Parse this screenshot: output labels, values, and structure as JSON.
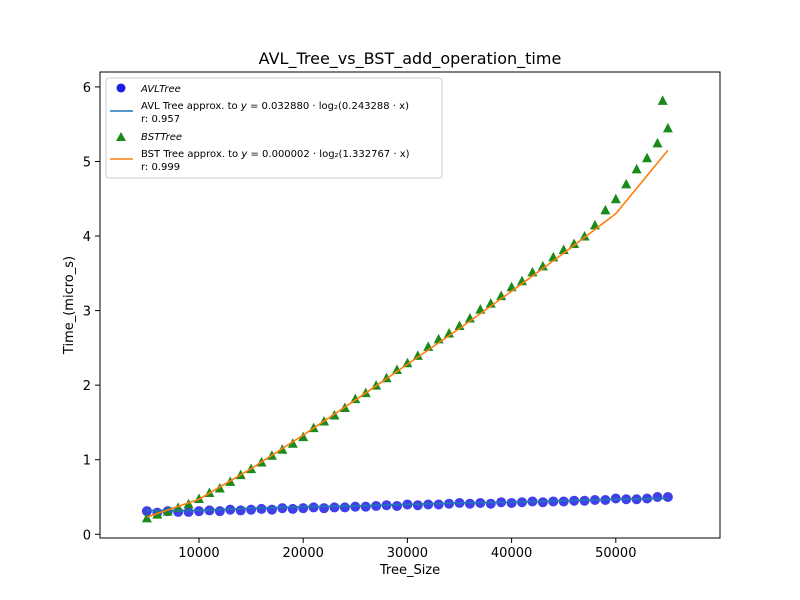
{
  "chart_data": {
    "type": "scatter",
    "title": "AVL_Tree_vs_BST_add_operation_time",
    "xlabel": "Tree_Size",
    "ylabel": "Time_(micro_s)",
    "xlim": [
      500,
      60000
    ],
    "ylim": [
      -0.05,
      6.2
    ],
    "xticks": [
      10000,
      20000,
      30000,
      40000,
      50000
    ],
    "xtick_labels": [
      "10000",
      "20000",
      "30000",
      "40000",
      "50000"
    ],
    "yticks": [
      0,
      1,
      2,
      3,
      4,
      5,
      6
    ],
    "ytick_labels": [
      "0",
      "1",
      "2",
      "3",
      "4",
      "5",
      "6"
    ],
    "grid": false,
    "legend_position": "upper-left",
    "series": [
      {
        "name": "AVLTree",
        "kind": "scatter",
        "marker": "circle",
        "color": "#1f1fe6",
        "x": [
          5000,
          6000,
          7000,
          8000,
          9000,
          10000,
          11000,
          12000,
          13000,
          14000,
          15000,
          16000,
          17000,
          18000,
          19000,
          20000,
          21000,
          22000,
          23000,
          24000,
          25000,
          26000,
          27000,
          28000,
          29000,
          30000,
          31000,
          32000,
          33000,
          34000,
          35000,
          36000,
          37000,
          38000,
          39000,
          40000,
          41000,
          42000,
          43000,
          44000,
          45000,
          46000,
          47000,
          48000,
          49000,
          50000,
          51000,
          52000,
          53000,
          54000,
          55000
        ],
        "y": [
          0.31,
          0.29,
          0.31,
          0.3,
          0.3,
          0.31,
          0.32,
          0.31,
          0.33,
          0.32,
          0.33,
          0.34,
          0.33,
          0.35,
          0.34,
          0.35,
          0.36,
          0.35,
          0.36,
          0.36,
          0.37,
          0.37,
          0.38,
          0.39,
          0.38,
          0.4,
          0.39,
          0.4,
          0.4,
          0.41,
          0.42,
          0.41,
          0.42,
          0.41,
          0.43,
          0.42,
          0.43,
          0.44,
          0.43,
          0.44,
          0.44,
          0.45,
          0.45,
          0.46,
          0.46,
          0.48,
          0.47,
          0.47,
          0.48,
          0.5,
          0.5
        ]
      },
      {
        "name": "AVL Tree approx. to y = 0.032880 · log2(0.243288 · x)\nr: 0.957",
        "kind": "line",
        "color": "#1f77b4",
        "x": [
          5000,
          10000,
          15000,
          20000,
          25000,
          30000,
          35000,
          40000,
          45000,
          50000,
          55000
        ],
        "y": [
          0.32,
          0.32,
          0.35,
          0.37,
          0.38,
          0.4,
          0.42,
          0.43,
          0.45,
          0.47,
          0.48
        ]
      },
      {
        "name": "BSTTree",
        "kind": "scatter",
        "marker": "triangle",
        "color": "#1a8a1a",
        "x": [
          5000,
          6000,
          7000,
          8000,
          9000,
          10000,
          11000,
          12000,
          13000,
          14000,
          15000,
          16000,
          17000,
          18000,
          19000,
          20000,
          21000,
          22000,
          23000,
          24000,
          25000,
          26000,
          27000,
          28000,
          29000,
          30000,
          31000,
          32000,
          33000,
          34000,
          35000,
          36000,
          37000,
          38000,
          39000,
          40000,
          41000,
          42000,
          43000,
          44000,
          45000,
          46000,
          47000,
          48000,
          49000,
          50000,
          51000,
          52000,
          53000,
          54000,
          54500,
          55000
        ],
        "y": [
          0.22,
          0.27,
          0.31,
          0.36,
          0.41,
          0.48,
          0.56,
          0.62,
          0.71,
          0.8,
          0.88,
          0.97,
          1.06,
          1.14,
          1.22,
          1.31,
          1.43,
          1.52,
          1.6,
          1.7,
          1.82,
          1.9,
          2.0,
          2.1,
          2.21,
          2.3,
          2.4,
          2.52,
          2.62,
          2.7,
          2.8,
          2.9,
          3.02,
          3.1,
          3.2,
          3.32,
          3.4,
          3.52,
          3.6,
          3.72,
          3.82,
          3.9,
          4.0,
          4.15,
          4.35,
          4.5,
          4.7,
          4.9,
          5.05,
          5.25,
          5.82,
          5.45
        ]
      },
      {
        "name": "BST Tree approx. to y = 0.000002 · log2(1.332767 · x)\nr: 0.999",
        "kind": "line",
        "color": "#ff7f0e",
        "x": [
          5000,
          10000,
          15000,
          20000,
          25000,
          30000,
          35000,
          40000,
          45000,
          50000,
          55000
        ],
        "y": [
          0.23,
          0.47,
          0.88,
          1.33,
          1.8,
          2.28,
          2.76,
          3.26,
          3.77,
          4.3,
          5.15
        ]
      }
    ]
  },
  "legend": {
    "avl_name": "AVLTree",
    "avl_fit_label": "AVL Tree approx. to",
    "avl_fit_formula_y": "y",
    "avl_fit_formula_rest": "= 0.032880 · log₂(0.243288 · x)",
    "avl_r": "r: 0.957",
    "bst_name": "BSTTree",
    "bst_fit_label": "BST Tree approx. to",
    "bst_fit_formula_y": "y",
    "bst_fit_formula_rest": "= 0.000002 · log₂(1.332767 · x)",
    "bst_r": "r: 0.999"
  }
}
